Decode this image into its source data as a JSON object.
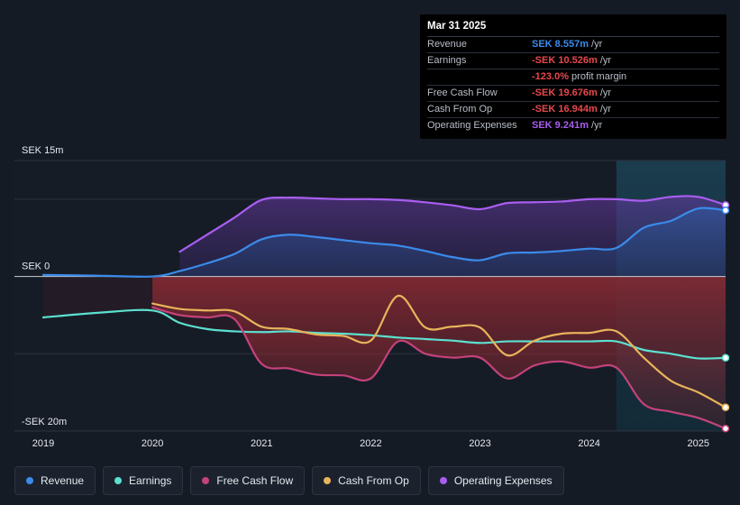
{
  "tooltip": {
    "date": "Mar 31 2025",
    "rows": [
      {
        "label": "Revenue",
        "value": "SEK 8.557m",
        "unit": " /yr",
        "color": "#3b8beb"
      },
      {
        "label": "Earnings",
        "value": "-SEK 10.526m",
        "unit": " /yr",
        "color": "#e8474c"
      },
      {
        "label": "",
        "value": "-123.0%",
        "unit": " profit margin",
        "color": "#e8474c"
      },
      {
        "label": "Free Cash Flow",
        "value": "-SEK 19.676m",
        "unit": " /yr",
        "color": "#e8474c"
      },
      {
        "label": "Cash From Op",
        "value": "-SEK 16.944m",
        "unit": " /yr",
        "color": "#e8474c"
      },
      {
        "label": "Operating Expenses",
        "value": "SEK 9.241m",
        "unit": " /yr",
        "color": "#a95ef0"
      }
    ]
  },
  "legend": [
    {
      "label": "Revenue",
      "color": "#3b8beb"
    },
    {
      "label": "Earnings",
      "color": "#5ce0d0"
    },
    {
      "label": "Free Cash Flow",
      "color": "#c4427a"
    },
    {
      "label": "Cash From Op",
      "color": "#e8b45a"
    },
    {
      "label": "Operating Expenses",
      "color": "#a95ef0"
    }
  ],
  "chart_data": {
    "type": "line",
    "title": "",
    "xlabel": "",
    "ylabel": "",
    "y_unit": "SEK m",
    "ylim": [
      -20,
      15
    ],
    "xlim": [
      2019,
      2025.25
    ],
    "y_tick_labels": [
      {
        "value": 15,
        "label": "SEK 15m"
      },
      {
        "value": 0,
        "label": "SEK 0"
      },
      {
        "value": -20,
        "label": "-SEK 20m"
      }
    ],
    "x_ticks": [
      "2019",
      "2020",
      "2021",
      "2022",
      "2023",
      "2024",
      "2025"
    ],
    "forecast_start": 2024.25,
    "series": [
      {
        "name": "Revenue",
        "color": "#3b8beb",
        "x": [
          2019.0,
          2019.5,
          2020.0,
          2020.25,
          2020.5,
          2020.75,
          2021.0,
          2021.25,
          2021.5,
          2021.75,
          2022.0,
          2022.25,
          2022.5,
          2022.75,
          2023.0,
          2023.25,
          2023.5,
          2023.75,
          2024.0,
          2024.25,
          2024.5,
          2024.75,
          2025.0,
          2025.25
        ],
        "y": [
          0.2,
          0.1,
          0.0,
          0.7,
          1.7,
          2.9,
          4.8,
          5.4,
          5.1,
          4.7,
          4.3,
          4.0,
          3.3,
          2.5,
          2.1,
          3.0,
          3.1,
          3.3,
          3.6,
          3.7,
          6.3,
          7.2,
          8.8,
          8.557
        ]
      },
      {
        "name": "Operating Expenses",
        "color": "#a95ef0",
        "x": [
          2020.25,
          2020.5,
          2020.75,
          2021.0,
          2021.25,
          2021.5,
          2021.75,
          2022.0,
          2022.25,
          2022.5,
          2022.75,
          2023.0,
          2023.25,
          2023.5,
          2023.75,
          2024.0,
          2024.25,
          2024.5,
          2024.75,
          2025.0,
          2025.25
        ],
        "y": [
          3.2,
          5.4,
          7.6,
          9.9,
          10.2,
          10.1,
          10.0,
          10.0,
          9.9,
          9.6,
          9.2,
          8.7,
          9.5,
          9.6,
          9.7,
          10.0,
          10.0,
          9.8,
          10.3,
          10.3,
          9.241
        ]
      },
      {
        "name": "Earnings",
        "color": "#5ce0d0",
        "x": [
          2019.0,
          2019.5,
          2020.0,
          2020.25,
          2020.5,
          2020.75,
          2021.0,
          2021.25,
          2021.5,
          2021.75,
          2022.0,
          2022.25,
          2022.5,
          2022.75,
          2023.0,
          2023.25,
          2023.5,
          2023.75,
          2024.0,
          2024.25,
          2024.5,
          2024.75,
          2025.0,
          2025.25
        ],
        "y": [
          -5.3,
          -4.7,
          -4.4,
          -6.0,
          -6.8,
          -7.1,
          -7.2,
          -7.1,
          -7.3,
          -7.4,
          -7.6,
          -7.9,
          -8.1,
          -8.3,
          -8.6,
          -8.4,
          -8.4,
          -8.4,
          -8.4,
          -8.4,
          -9.5,
          -10.0,
          -10.6,
          -10.526
        ]
      },
      {
        "name": "Cash From Op",
        "color": "#e8b45a",
        "x": [
          2020.0,
          2020.25,
          2020.5,
          2020.75,
          2021.0,
          2021.25,
          2021.5,
          2021.75,
          2022.0,
          2022.25,
          2022.5,
          2022.75,
          2023.0,
          2023.25,
          2023.5,
          2023.75,
          2024.0,
          2024.25,
          2024.5,
          2024.75,
          2025.0,
          2025.25
        ],
        "y": [
          -3.5,
          -4.2,
          -4.4,
          -4.5,
          -6.5,
          -6.8,
          -7.5,
          -7.7,
          -8.3,
          -2.5,
          -6.6,
          -6.5,
          -6.6,
          -10.2,
          -8.3,
          -7.4,
          -7.3,
          -7.1,
          -10.5,
          -13.5,
          -15.0,
          -16.944
        ]
      },
      {
        "name": "Free Cash Flow",
        "color": "#c4427a",
        "x": [
          2020.0,
          2020.25,
          2020.5,
          2020.75,
          2021.0,
          2021.25,
          2021.5,
          2021.75,
          2022.0,
          2022.25,
          2022.5,
          2022.75,
          2023.0,
          2023.25,
          2023.5,
          2023.75,
          2024.0,
          2024.25,
          2024.5,
          2024.75,
          2025.0,
          2025.25
        ],
        "y": [
          -4.0,
          -5.0,
          -5.3,
          -5.5,
          -11.3,
          -11.9,
          -12.7,
          -12.8,
          -13.2,
          -8.4,
          -10.0,
          -10.5,
          -10.5,
          -13.2,
          -11.5,
          -11.0,
          -11.8,
          -11.8,
          -16.5,
          -17.5,
          -18.3,
          -19.676
        ]
      }
    ]
  }
}
